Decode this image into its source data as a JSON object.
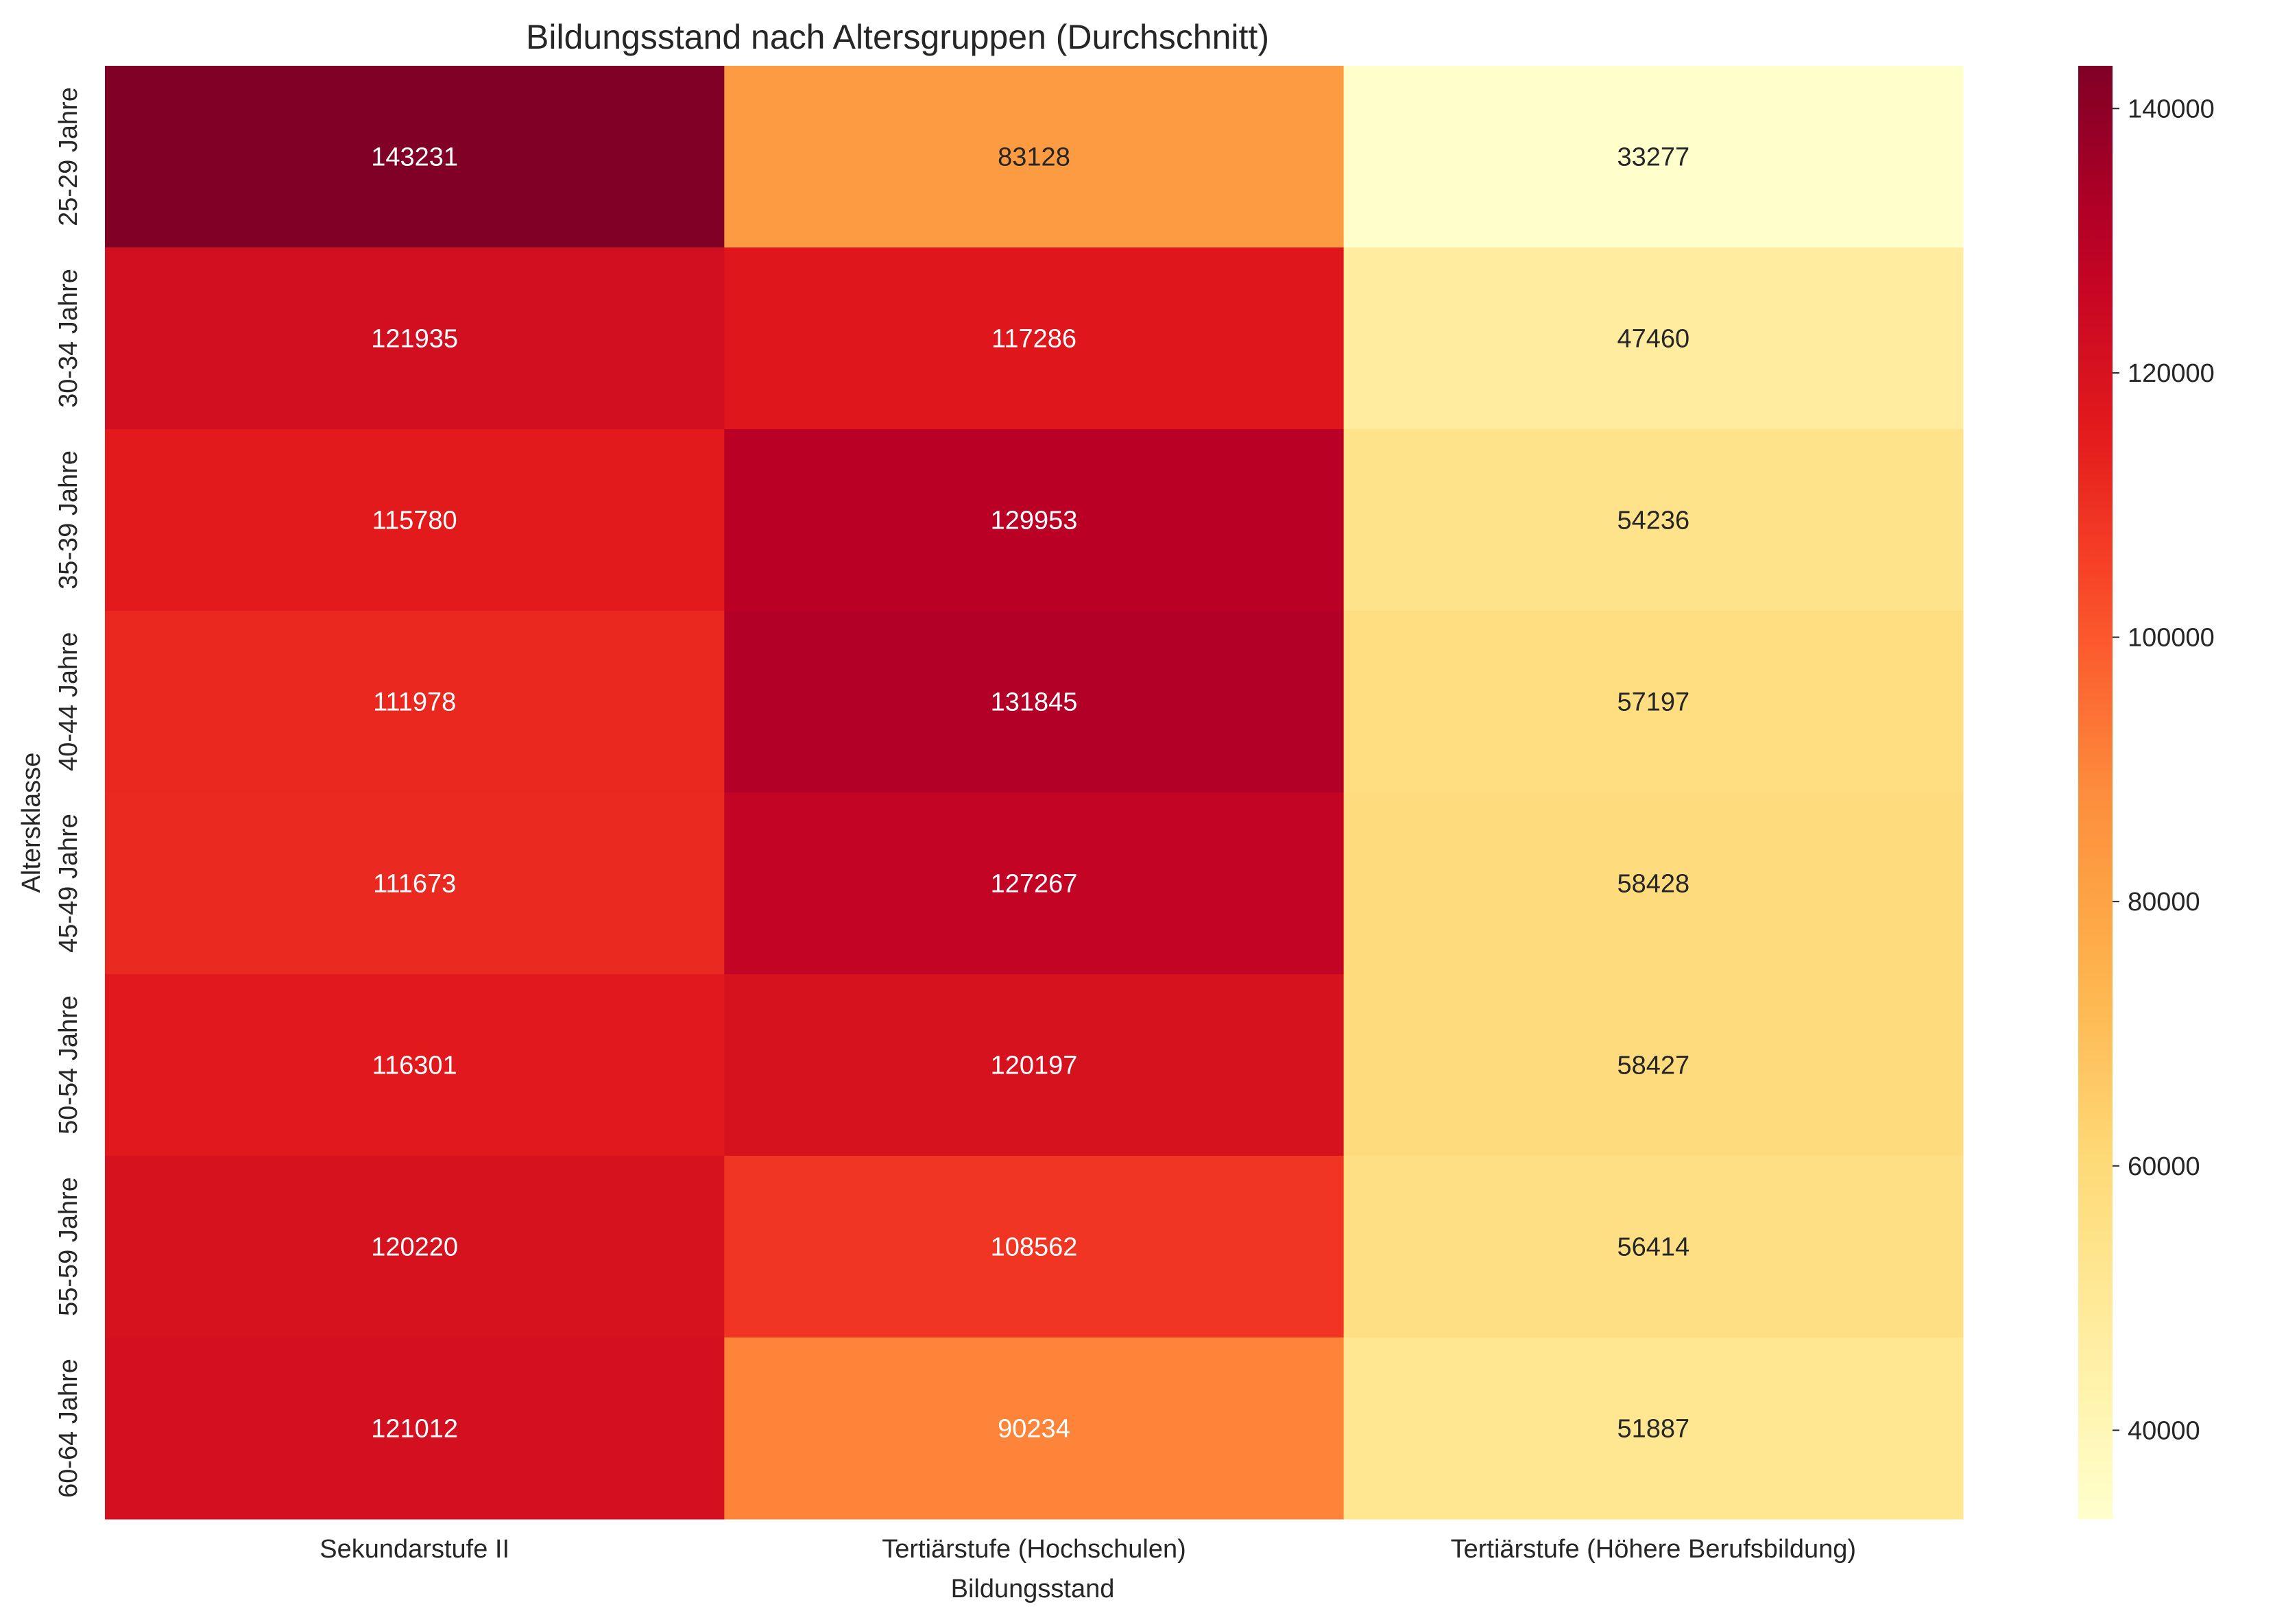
{
  "chart_data": {
    "type": "heatmap",
    "title": "Bildungsstand nach Altersgruppen (Durchschnitt)",
    "xlabel": "Bildungsstand",
    "ylabel": "Altersklasse",
    "columns": [
      "Sekundarstufe II",
      "Tertiärstufe (Hochschulen)",
      "Tertiärstufe (Höhere Berufsbildung)"
    ],
    "rows": [
      "25-29 Jahre",
      "30-34 Jahre",
      "35-39 Jahre",
      "40-44 Jahre",
      "45-49 Jahre",
      "50-54 Jahre",
      "55-59 Jahre",
      "60-64 Jahre"
    ],
    "values": [
      [
        143231,
        83128,
        33277
      ],
      [
        121935,
        117286,
        47460
      ],
      [
        115780,
        129953,
        54236
      ],
      [
        111978,
        131845,
        57197
      ],
      [
        111673,
        127267,
        58428
      ],
      [
        116301,
        120197,
        58427
      ],
      [
        120220,
        108562,
        56414
      ],
      [
        121012,
        90234,
        51887
      ]
    ],
    "colormap": "YlOrRd",
    "color_range": [
      33277,
      143231
    ],
    "colorbar_ticks": [
      40000,
      60000,
      80000,
      100000,
      120000,
      140000
    ],
    "colorbar_tick_labels": [
      "40000",
      "60000",
      "80000",
      "100000",
      "120000",
      "140000"
    ],
    "annotated": true,
    "grid": false
  }
}
